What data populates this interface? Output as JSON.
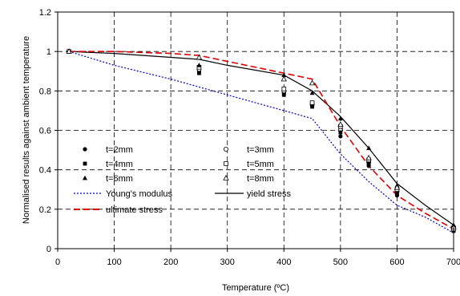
{
  "chart_data": {
    "type": "scatter",
    "xlabel": "Temperature (ºC)",
    "ylabel": "Normalised results against ambient temperature",
    "xlim": [
      0,
      700
    ],
    "ylim": [
      0,
      1.2
    ],
    "x_ticks": [
      "0",
      "100",
      "200",
      "300",
      "400",
      "500",
      "600",
      "700"
    ],
    "y_ticks": [
      "0",
      "0.2",
      "0.4",
      "0.6",
      "0.8",
      "1",
      "1.2"
    ],
    "grid": "dashed",
    "legend_position": "lower-left inside",
    "scatter_series": [
      {
        "name": "t=2mm",
        "marker": "filled-circle",
        "points": [
          [
            20,
            1.0
          ],
          [
            250,
            0.9
          ],
          [
            400,
            0.79
          ],
          [
            450,
            0.74
          ],
          [
            500,
            0.57
          ],
          [
            550,
            0.42
          ],
          [
            600,
            0.27
          ],
          [
            700,
            0.1
          ]
        ]
      },
      {
        "name": "t=3mm",
        "marker": "open-circle",
        "points": [
          [
            20,
            1.0
          ],
          [
            250,
            0.91
          ],
          [
            400,
            0.8
          ],
          [
            450,
            0.73
          ],
          [
            500,
            0.6
          ],
          [
            550,
            0.44
          ],
          [
            600,
            0.29
          ],
          [
            700,
            0.11
          ]
        ]
      },
      {
        "name": "t=4mm",
        "marker": "filled-square",
        "points": [
          [
            20,
            1.0
          ],
          [
            250,
            0.89
          ],
          [
            400,
            0.78
          ],
          [
            450,
            0.72
          ],
          [
            500,
            0.59
          ],
          [
            550,
            0.43
          ],
          [
            600,
            0.28
          ],
          [
            700,
            0.09
          ]
        ]
      },
      {
        "name": "t=5mm",
        "marker": "open-square",
        "points": [
          [
            20,
            1.0
          ],
          [
            250,
            0.92
          ],
          [
            400,
            0.81
          ],
          [
            450,
            0.74
          ],
          [
            500,
            0.62
          ],
          [
            550,
            0.45
          ],
          [
            600,
            0.3
          ],
          [
            700,
            0.1
          ]
        ]
      },
      {
        "name": "t=6mm",
        "marker": "filled-triangle",
        "points": [
          [
            20,
            1.0
          ],
          [
            250,
            0.93
          ],
          [
            400,
            0.88
          ],
          [
            450,
            0.79
          ],
          [
            500,
            0.66
          ],
          [
            550,
            0.51
          ],
          [
            600,
            0.32
          ],
          [
            700,
            0.12
          ]
        ]
      },
      {
        "name": "t=8mm",
        "marker": "open-triangle",
        "points": [
          [
            20,
            1.0
          ],
          [
            250,
            0.97
          ],
          [
            400,
            0.86
          ],
          [
            450,
            0.84
          ],
          [
            500,
            0.63
          ],
          [
            550,
            0.46
          ],
          [
            600,
            0.31
          ],
          [
            700,
            0.11
          ]
        ]
      }
    ],
    "line_series": [
      {
        "name": "Young's modulus",
        "style": "dotted",
        "color": "#0000cc",
        "points": [
          [
            20,
            1.0
          ],
          [
            100,
            0.93
          ],
          [
            200,
            0.86
          ],
          [
            300,
            0.78
          ],
          [
            400,
            0.7
          ],
          [
            450,
            0.66
          ],
          [
            500,
            0.48
          ],
          [
            550,
            0.34
          ],
          [
            600,
            0.22
          ],
          [
            650,
            0.16
          ],
          [
            700,
            0.08
          ]
        ]
      },
      {
        "name": "yield stress",
        "style": "solid",
        "color": "#000000",
        "points": [
          [
            20,
            1.0
          ],
          [
            100,
            0.99
          ],
          [
            200,
            0.97
          ],
          [
            250,
            0.96
          ],
          [
            300,
            0.93
          ],
          [
            400,
            0.88
          ],
          [
            450,
            0.8
          ],
          [
            500,
            0.67
          ],
          [
            550,
            0.51
          ],
          [
            600,
            0.33
          ],
          [
            650,
            0.22
          ],
          [
            700,
            0.12
          ]
        ]
      },
      {
        "name": "ultimate stress",
        "style": "dashed",
        "color": "#dd0000",
        "points": [
          [
            20,
            1.0
          ],
          [
            100,
            1.0
          ],
          [
            200,
            0.99
          ],
          [
            250,
            0.98
          ],
          [
            300,
            0.95
          ],
          [
            400,
            0.89
          ],
          [
            450,
            0.86
          ],
          [
            500,
            0.62
          ],
          [
            550,
            0.42
          ],
          [
            600,
            0.27
          ],
          [
            650,
            0.18
          ],
          [
            700,
            0.1
          ]
        ]
      }
    ]
  }
}
